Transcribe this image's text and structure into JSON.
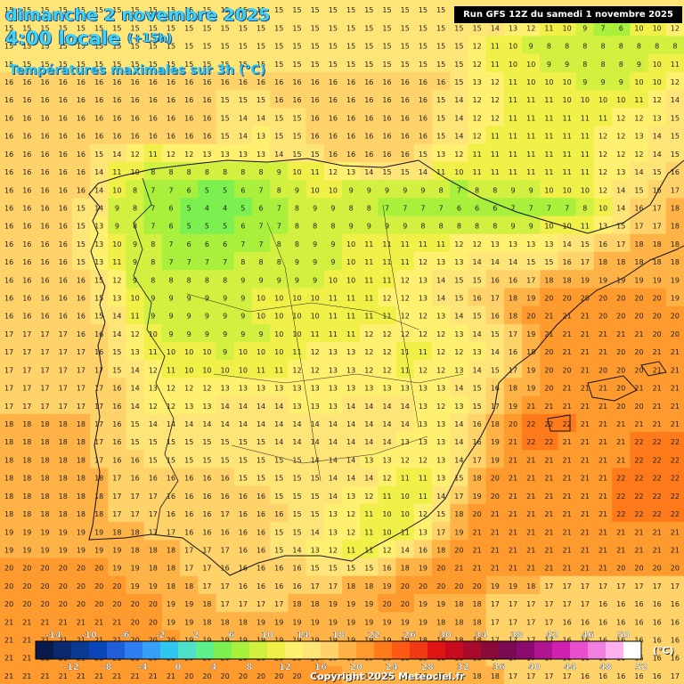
{
  "header": {
    "date": "dimanche 2 novembre 2025",
    "time": "4:00 locale",
    "offset": "(+15h)",
    "variable": "Températures maximales sur 3h (°C)"
  },
  "run_label": "Run GFS 12Z du samedi 1 novembre 2025",
  "copyright": "Copyright 2025 Meteociel.fr",
  "legend": {
    "unit": "(°C)",
    "top_labels": [
      "-14",
      "-10",
      "-6",
      "-2",
      "2",
      "6",
      "10",
      "14",
      "18",
      "22",
      "26",
      "30",
      "34",
      "38",
      "42",
      "46",
      "50"
    ],
    "bottom_labels": [
      "-12",
      "-8",
      "-4",
      "0",
      "4",
      "8",
      "12",
      "16",
      "20",
      "24",
      "28",
      "32",
      "36",
      "40",
      "44",
      "48",
      "52"
    ],
    "colors": [
      "#0a1a4a",
      "#0b2a6e",
      "#0b3a92",
      "#0a46b8",
      "#1f5ed8",
      "#2f7ef0",
      "#35a0f5",
      "#2fc6f0",
      "#4ee0c8",
      "#5ef08c",
      "#7cf050",
      "#a8f03c",
      "#d2f040",
      "#f0f048",
      "#fff070",
      "#ffe478",
      "#ffd26a",
      "#ffb347",
      "#ff9a2e",
      "#ff7a1a",
      "#ff5a14",
      "#f03a14",
      "#e01414",
      "#c80a1e",
      "#a80a2e",
      "#8a0a3a",
      "#7a0a52",
      "#8a0a6e",
      "#b01490",
      "#d020b0",
      "#e850d0",
      "#f080e0",
      "#ffb0f0",
      "#ffffff"
    ]
  },
  "map": {
    "region": "Iberian Peninsula",
    "value_rows": [
      "15 15 15 15 15 15 15 15 15 15 15 15 15 15 15 15 15 15 15 15 15 15 15 15 15 15 15 15 15 15 15 15 15 15 15 15 15 15",
      "15 15 15 15 15 15 15 15 15 15 15 15 15 15 15 15 15 15 15 15 15 15 15 15 15 15 15 14 13 12 11 10 9 7 6 10 10 12",
      "15 15 15 15 15 15 15 15 15 15 15 15 15 15 15 15 15 15 15 15 15 15 15 15 15 15 12 11 10 9 8 8 8 8 8 8 8 8",
      "15 15 15 15 15 15 15 15 15 15 15 15 15 15 15 15 15 15 15 15 15 15 15 15 15 15 12 11 10 10 9 9 8 8 8 9 10 11",
      "16 16 16 16 16 16 16 16 16 16 16 16 16 16 16 16 16 16 16 16 16 16 16 16 16 15 13 12 11 10 10 10 9 9 9 10 10 12",
      "16 16 16 16 16 16 16 16 16 16 16 16 15 15 15 16 16 16 16 16 16 16 16 16 15 14 12 12 11 11 11 10 10 10 10 11 12 14",
      "16 16 16 16 16 16 16 16 16 16 16 16 15 14 14 15 15 16 16 16 16 16 16 16 15 14 12 12 11 11 11 11 11 11 12 12 13 15",
      "16 16 16 16 16 16 16 16 16 16 16 16 15 14 13 15 15 16 16 16 16 16 16 16 15 14 12 11 11 11 11 11 11 12 12 13 14 15",
      "16 16 16 16 16 15 14 12 11 12 12 13 13 13 13 14 15 15 16 16 16 16 16 15 13 12 11 11 11 11 11 11 11 12 12 12 14 15",
      "16 16 16 16 16 14 11 10 8 8 8 8 8 8 8 9 10 11 12 13 14 15 15 14 11 10 11 11 11 11 11 11 11 12 13 14 15 16",
      "16 16 16 16 16 14 10 8 7 7 6 5 5 6 7 8 9 10 10 9 9 9 9 9 8 7 8 8 9 9 10 10 10 12 14 15 16 17",
      "16 16 16 16 15 14 9 8 7 6 5 4 4 5 6 7 8 9 9 8 8 7 7 7 7 6 6 6 7 7 7 7 8 10 14 16 17 18",
      "16 16 16 16 15 13 9 8 7 6 5 5 5 6 7 7 8 8 8 9 9 9 9 8 8 8 8 8 9 9 10 10 11 13 15 17 17 18",
      "16 16 16 16 15 13 10 9 8 7 6 6 6 7 7 8 8 9 9 10 11 11 11 11 11 12 12 13 13 13 13 14 15 16 17 18 18 18",
      "16 16 16 16 15 13 11 9 8 7 7 7 7 8 8 8 9 9 9 10 11 11 11 12 13 13 14 14 14 15 15 16 17 18 18 18 18 18",
      "16 16 16 16 16 15 12 9 8 8 8 8 8 9 9 9 9 9 10 10 11 11 12 13 14 15 15 16 16 17 18 18 19 19 19 19 19 19",
      "16 16 16 16 16 15 13 10 9 9 9 9 9 9 10 10 10 10 11 11 11 12 12 13 14 15 16 17 18 19 20 20 20 20 20 20 20 19",
      "16 16 16 16 16 15 14 11 9 9 9 9 9 9 10 10 10 10 11 11 11 11 12 12 13 14 15 16 18 20 21 21 21 20 20 20 20 20",
      "17 17 17 17 16 16 14 12 10 9 9 9 9 9 9 10 10 11 11 11 12 12 12 12 12 13 14 15 17 19 21 21 21 21 21 21 20 20",
      "17 17 17 17 17 16 15 13 11 10 10 10 9 10 10 10 11 12 13 13 12 12 11 11 12 12 13 14 16 18 20 21 21 21 20 20 21 21",
      "17 17 17 17 17 17 15 14 12 11 10 10 10 10 11 11 12 12 13 13 12 12 11 12 12 13 14 15 17 19 20 20 21 20 20 20 21 21",
      "17 17 17 17 17 17 16 14 13 12 12 12 13 13 13 13 13 13 13 13 13 13 13 13 13 14 15 16 18 19 20 21 21 21 20 21 21 21",
      "17 17 17 17 17 17 16 14 12 12 13 13 14 14 14 14 13 13 13 14 14 14 14 13 12 13 15 17 19 21 21 21 21 21 20 20 21 21",
      "18 18 18 18 18 17 16 15 14 14 14 14 14 14 14 14 14 14 14 14 14 14 14 13 13 14 16 18 20 22 22 22 21 21 21 21 21 21",
      "18 18 18 18 18 17 16 15 15 15 15 15 15 15 15 14 14 14 14 14 14 14 13 13 13 14 16 19 21 22 22 21 21 21 21 22 22 22",
      "18 18 18 18 18 17 16 16 15 15 15 15 15 15 15 15 15 14 14 14 13 13 12 12 13 14 17 19 21 21 21 21 21 21 21 22 22 22",
      "18 18 18 18 18 18 17 16 16 16 16 16 16 15 15 15 15 15 14 14 14 12 11 11 13 15 18 20 21 21 21 21 21 21 22 22 22 22",
      "18 18 18 18 18 18 17 17 17 16 16 16 16 16 16 15 15 15 14 13 12 11 10 11 14 17 19 20 21 21 21 21 21 21 22 22 22 22",
      "18 18 18 18 18 18 17 17 17 16 16 16 17 16 16 16 15 15 13 12 11 10 10 12 15 18 20 21 21 21 21 21 21 21 22 22 22 22",
      "19 19 19 19 19 19 18 18 17 17 16 16 16 16 16 15 15 14 13 12 11 10 11 13 17 19 21 21 21 21 21 21 21 21 21 21 21 21",
      "19 19 19 19 19 19 19 18 18 18 17 17 17 16 16 15 14 13 12 11 11 12 14 16 18 20 21 21 21 21 21 21 21 21 21 21 21 21",
      "20 20 20 20 20 20 19 19 18 18 17 17 16 16 16 16 16 15 15 15 15 16 18 19 20 21 21 21 21 21 21 21 21 21 20 20 20 20",
      "20 20 20 20 20 20 20 19 19 18 18 17 17 16 16 16 16 17 17 18 18 19 20 20 20 20 20 19 19 18 17 17 17 17 17 17 17 17",
      "20 20 20 20 20 20 20 20 20 19 19 18 17 17 17 17 18 18 19 19 19 20 20 19 19 18 18 17 17 17 17 17 17 16 16 16 16 16",
      "21 21 21 21 21 21 21 20 20 19 19 18 18 18 19 19 19 19 19 19 19 19 19 19 18 18 18 17 17 17 17 16 16 16 16 16 16 16",
      "21 21 21 21 21 21 21 20 20 20 19 19 19 19 19 19 19 19 19 19 19 19 19 18 18 18 18 17 17 17 17 16 16 16 16 16 16 16",
      "21 21 21 21 21 21 21 21 20 20 20 20 20 20 20 20 20 20 19 19 19 19 18 18 18 18 18 17 17 17 17 16 16 16 16 16 16 16",
      "21 21 21 21 21 21 21 21 21 21 20 20 20 20 20 20 20 20 20 19 19 19 19 18 18 18 18 18 17 17 17 17 16 16 16 16 16 17"
    ]
  }
}
